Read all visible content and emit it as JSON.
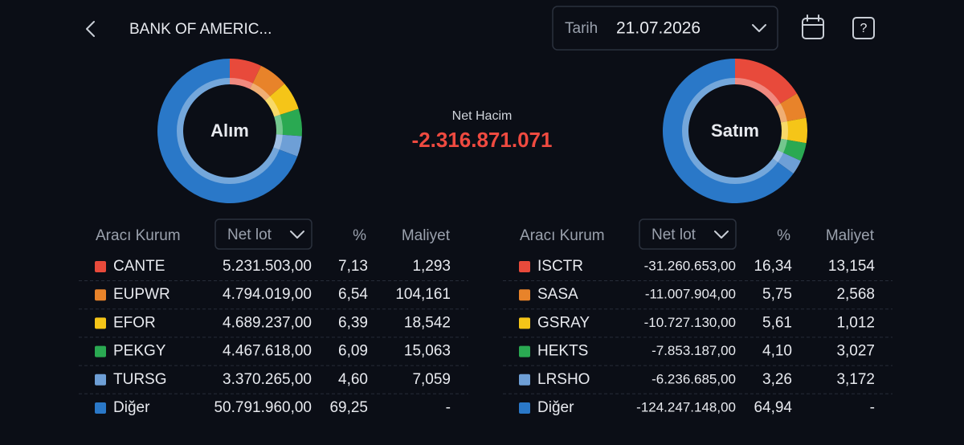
{
  "header": {
    "title": "BANK OF AMERIC...",
    "date_label": "Tarih",
    "date": "21.07.2026"
  },
  "net_volume": {
    "label": "Net Hacim",
    "value": "-2.316.871.071"
  },
  "buy": {
    "title": "Alım",
    "columns": [
      "Aracı Kurum",
      "Net lot",
      "%",
      "Maliyet"
    ],
    "rows": [
      {
        "broker": "CANTE",
        "color": "#e84a3b",
        "net_lot": "5.231.503,00",
        "percent": 7.13,
        "percent_label": "7,13",
        "cost": "1,293"
      },
      {
        "broker": "EUPWR",
        "color": "#e8832a",
        "net_lot": "4.794.019,00",
        "percent": 6.54,
        "percent_label": "6,54",
        "cost": "104,161"
      },
      {
        "broker": "EFOR",
        "color": "#f5c518",
        "net_lot": "4.689.237,00",
        "percent": 6.39,
        "percent_label": "6,39",
        "cost": "18,542"
      },
      {
        "broker": "PEKGY",
        "color": "#2aa952",
        "net_lot": "4.467.618,00",
        "percent": 6.09,
        "percent_label": "6,09",
        "cost": "15,063"
      },
      {
        "broker": "TURSG",
        "color": "#6e9fd6",
        "net_lot": "3.370.265,00",
        "percent": 4.6,
        "percent_label": "4,60",
        "cost": "7,059"
      },
      {
        "broker": "Diğer",
        "color": "#2a78c8",
        "net_lot": "50.791.960,00",
        "percent": 69.25,
        "percent_label": "69,25",
        "cost": "-"
      }
    ]
  },
  "sell": {
    "title": "Satım",
    "columns": [
      "Aracı Kurum",
      "Net lot",
      "%",
      "Maliyet"
    ],
    "rows": [
      {
        "broker": "ISCTR",
        "color": "#e84a3b",
        "net_lot": "-31.260.653,00",
        "percent": 16.34,
        "percent_label": "16,34",
        "cost": "13,154"
      },
      {
        "broker": "SASA",
        "color": "#e8832a",
        "net_lot": "-11.007.904,00",
        "percent": 5.75,
        "percent_label": "5,75",
        "cost": "2,568"
      },
      {
        "broker": "GSRAY",
        "color": "#f5c518",
        "net_lot": "-10.727.130,00",
        "percent": 5.61,
        "percent_label": "5,61",
        "cost": "1,012"
      },
      {
        "broker": "HEKTS",
        "color": "#2aa952",
        "net_lot": "-7.853.187,00",
        "percent": 4.1,
        "percent_label": "4,10",
        "cost": "3,027"
      },
      {
        "broker": "LRSHO",
        "color": "#6e9fd6",
        "net_lot": "-6.236.685,00",
        "percent": 3.26,
        "percent_label": "3,26",
        "cost": "3,172"
      },
      {
        "broker": "Diğer",
        "color": "#2a78c8",
        "net_lot": "-124.247.148,00",
        "percent": 64.94,
        "percent_label": "64,94",
        "cost": "-"
      }
    ]
  }
}
